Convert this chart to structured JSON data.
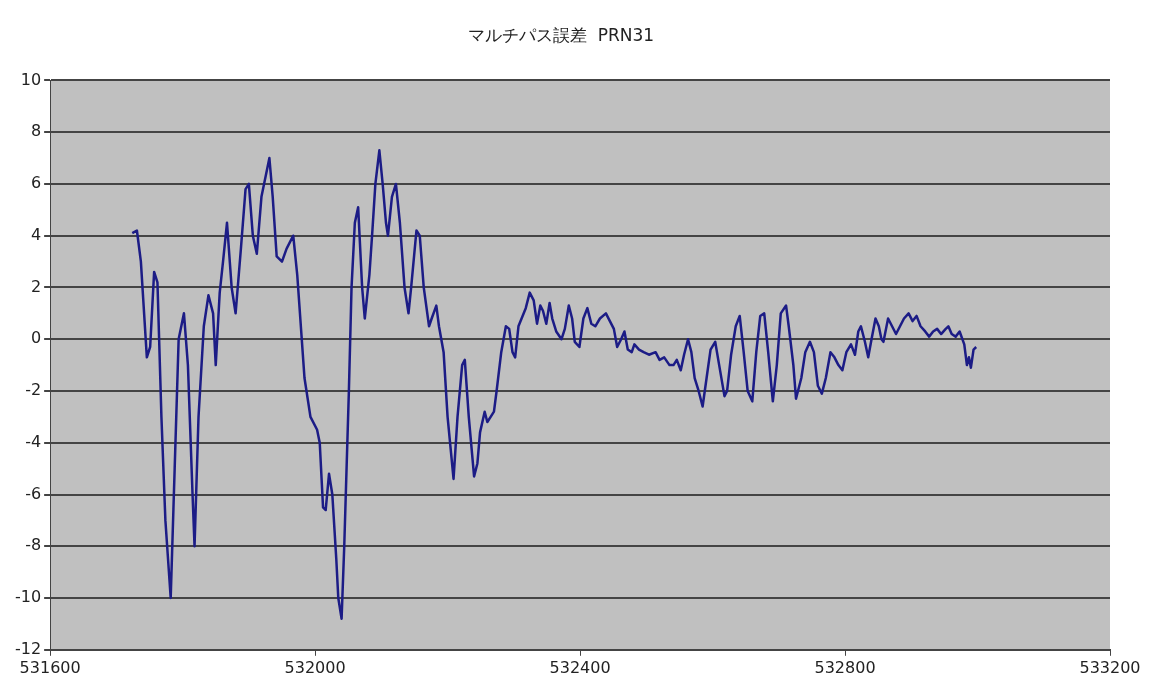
{
  "chart_data": {
    "type": "line",
    "title": "マルチパス誤差  PRN31",
    "xlim": [
      531600,
      533200
    ],
    "xticks": [
      531600,
      532000,
      532400,
      532800,
      533200
    ],
    "ylim": [
      -12,
      10
    ],
    "yticks": [
      -12,
      -10,
      -8,
      -6,
      -4,
      -2,
      0,
      2,
      4,
      6,
      8,
      10
    ],
    "grid": "y",
    "legend": false,
    "marker": "none",
    "line_style": "solid",
    "series": [
      {
        "color": "#1c1c86",
        "x": [
          531724,
          531731,
          531737,
          531746,
          531751,
          531757,
          531762,
          531768,
          531774,
          531782,
          531788,
          531794,
          531802,
          531808,
          531815,
          531818,
          531824,
          531832,
          531839,
          531846,
          531850,
          531856,
          531861,
          531867,
          531874,
          531880,
          531888,
          531895,
          531900,
          531906,
          531912,
          531919,
          531931,
          531936,
          531942,
          531950,
          531957,
          531967,
          531973,
          531984,
          531993,
          532003,
          532007,
          532012,
          532016,
          532021,
          532026,
          532032,
          532035,
          532040,
          532044,
          532051,
          532055,
          532060,
          532065,
          532071,
          532075,
          532082,
          532086,
          532091,
          532097,
          532102,
          532107,
          532110,
          532116,
          532122,
          532128,
          532135,
          532141,
          532145,
          532153,
          532158,
          532164,
          532172,
          532176,
          532183,
          532187,
          532194,
          532200,
          532209,
          532215,
          532222,
          532226,
          532232,
          532240,
          532245,
          532249,
          532256,
          532260,
          532265,
          532270,
          532274,
          532281,
          532288,
          532293,
          532298,
          532302,
          532307,
          532318,
          532324,
          532330,
          532335,
          532340,
          532344,
          532349,
          532354,
          532358,
          532364,
          532372,
          532377,
          532383,
          532388,
          532392,
          532399,
          532405,
          532411,
          532417,
          532423,
          532430,
          532439,
          532445,
          532451,
          532456,
          532462,
          532467,
          532472,
          532478,
          532482,
          532489,
          532496,
          532504,
          532514,
          532520,
          532527,
          532535,
          532541,
          532546,
          532552,
          532557,
          532563,
          532568,
          532573,
          532579,
          532585,
          532591,
          532597,
          532604,
          532610,
          532618,
          532622,
          532628,
          532635,
          532641,
          532647,
          532653,
          532660,
          532666,
          532672,
          532678,
          532684,
          532691,
          532697,
          532703,
          532711,
          532715,
          532722,
          532726,
          532734,
          532740,
          532747,
          532753,
          532759,
          532765,
          532771,
          532778,
          532784,
          532790,
          532796,
          532802,
          532809,
          532815,
          532820,
          532824,
          532830,
          532835,
          532840,
          532846,
          532851,
          532855,
          532858,
          532865,
          532871,
          532877,
          532883,
          532889,
          532896,
          532902,
          532908,
          532914,
          532921,
          532927,
          532933,
          532939,
          532945,
          532952,
          532956,
          532961,
          532967,
          532973,
          532980,
          532984,
          532987,
          532990,
          532994,
          532998
        ],
        "values": [
          4.1,
          4.2,
          3,
          -0.7,
          -0.3,
          2.6,
          2.2,
          -3,
          -7,
          -10,
          -5,
          0,
          1,
          -1,
          -6,
          -8,
          -3,
          0.5,
          1.7,
          1,
          -1,
          1.8,
          3,
          4.5,
          2,
          1,
          3.5,
          5.8,
          6,
          4,
          3.3,
          5.5,
          7,
          5.5,
          3.2,
          3,
          3.5,
          4,
          2.5,
          -1.5,
          -3,
          -3.5,
          -4,
          -6.5,
          -6.6,
          -5.2,
          -6,
          -8.5,
          -10,
          -10.8,
          -8,
          -2,
          2,
          4.5,
          5.1,
          2,
          0.8,
          2.5,
          4,
          6,
          7.3,
          6,
          4.5,
          4,
          5.5,
          6,
          4.5,
          2,
          1,
          2,
          4.2,
          4,
          2,
          0.5,
          0.8,
          1.3,
          0.5,
          -0.5,
          -3,
          -5.4,
          -3,
          -1,
          -0.8,
          -3,
          -5.3,
          -4.8,
          -3.6,
          -2.8,
          -3.2,
          -3,
          -2.8,
          -2,
          -0.5,
          0.5,
          0.4,
          -0.5,
          -0.7,
          0.5,
          1.2,
          1.8,
          1.5,
          0.6,
          1.3,
          1.1,
          0.6,
          1.4,
          0.8,
          0.3,
          0,
          0.4,
          1.3,
          0.8,
          -0.1,
          -0.3,
          0.8,
          1.2,
          0.6,
          0.5,
          0.8,
          1,
          0.7,
          0.4,
          -0.3,
          0,
          0.3,
          -0.4,
          -0.5,
          -0.2,
          -0.4,
          -0.5,
          -0.6,
          -0.5,
          -0.8,
          -0.7,
          -1,
          -1,
          -0.8,
          -1.2,
          -0.6,
          0,
          -0.5,
          -1.5,
          -2,
          -2.6,
          -1.5,
          -0.4,
          -0.1,
          -1,
          -2.2,
          -2,
          -0.6,
          0.5,
          0.9,
          -0.5,
          -2,
          -2.4,
          -0.5,
          0.9,
          1,
          -0.5,
          -2.4,
          -1,
          1,
          1.3,
          0.5,
          -1,
          -2.3,
          -1.5,
          -0.5,
          -0.1,
          -0.5,
          -1.8,
          -2.1,
          -1.5,
          -0.5,
          -0.7,
          -1,
          -1.2,
          -0.5,
          -0.2,
          -0.6,
          0.3,
          0.5,
          -0.1,
          -0.7,
          0,
          0.8,
          0.5,
          0,
          -0.1,
          0.8,
          0.5,
          0.2,
          0.5,
          0.8,
          1,
          0.7,
          0.9,
          0.5,
          0.3,
          0.1,
          0.3,
          0.4,
          0.2,
          0.4,
          0.5,
          0.2,
          0.1,
          0.3,
          -0.2,
          -1,
          -0.7,
          -1.1,
          -0.4,
          -0.3
        ]
      }
    ]
  }
}
